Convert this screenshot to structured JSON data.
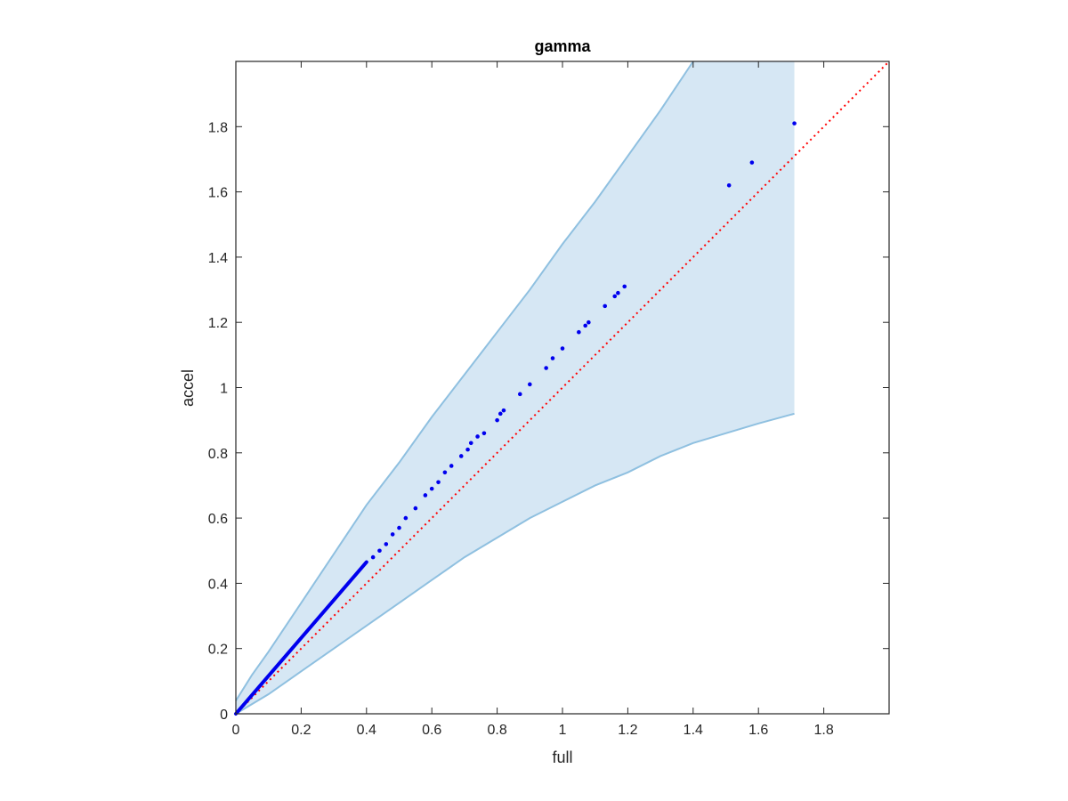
{
  "chart_data": {
    "type": "scatter",
    "title": "gamma",
    "xlabel": "full",
    "ylabel": "accel",
    "xlim": [
      0,
      2
    ],
    "ylim": [
      0,
      2
    ],
    "xticks": [
      "0",
      "0.2",
      "0.4",
      "0.6",
      "0.8",
      "1",
      "1.2",
      "1.4",
      "1.6",
      "1.8"
    ],
    "yticks": [
      "0",
      "0.2",
      "0.4",
      "0.6",
      "0.8",
      "1",
      "1.2",
      "1.4",
      "1.6",
      "1.8"
    ],
    "grid": false,
    "colors": {
      "points": "#0000ee",
      "reference_line": "#ff0000",
      "band_fill": "#d6e7f4",
      "band_edge": "#8fc0e0",
      "axes": "#262626"
    },
    "band": {
      "upper": [
        [
          0,
          0.04
        ],
        [
          0.05,
          0.12
        ],
        [
          0.1,
          0.19
        ],
        [
          0.2,
          0.34
        ],
        [
          0.3,
          0.49
        ],
        [
          0.4,
          0.64
        ],
        [
          0.5,
          0.77
        ],
        [
          0.6,
          0.91
        ],
        [
          0.7,
          1.04
        ],
        [
          0.8,
          1.17
        ],
        [
          0.9,
          1.3
        ],
        [
          1.0,
          1.44
        ],
        [
          1.1,
          1.57
        ],
        [
          1.2,
          1.71
        ],
        [
          1.3,
          1.85
        ],
        [
          1.38,
          1.97
        ],
        [
          1.4,
          2.0
        ]
      ],
      "lower": [
        [
          0,
          0
        ],
        [
          0.05,
          0.03
        ],
        [
          0.1,
          0.06
        ],
        [
          0.2,
          0.13
        ],
        [
          0.3,
          0.2
        ],
        [
          0.4,
          0.27
        ],
        [
          0.5,
          0.34
        ],
        [
          0.6,
          0.41
        ],
        [
          0.7,
          0.48
        ],
        [
          0.8,
          0.54
        ],
        [
          0.9,
          0.6
        ],
        [
          1.0,
          0.65
        ],
        [
          1.1,
          0.7
        ],
        [
          1.2,
          0.74
        ],
        [
          1.3,
          0.79
        ],
        [
          1.4,
          0.83
        ],
        [
          1.5,
          0.86
        ],
        [
          1.6,
          0.89
        ],
        [
          1.71,
          0.92
        ]
      ],
      "x_end": 1.71
    },
    "reference_line": {
      "style": "dotted",
      "from": [
        0,
        0
      ],
      "to": [
        2,
        2
      ]
    },
    "points_dense_segment": {
      "from": [
        0,
        0
      ],
      "to": [
        0.4,
        0.465
      ]
    },
    "points": [
      [
        0.42,
        0.48
      ],
      [
        0.44,
        0.5
      ],
      [
        0.46,
        0.52
      ],
      [
        0.48,
        0.55
      ],
      [
        0.5,
        0.57
      ],
      [
        0.52,
        0.6
      ],
      [
        0.55,
        0.63
      ],
      [
        0.58,
        0.67
      ],
      [
        0.6,
        0.69
      ],
      [
        0.62,
        0.71
      ],
      [
        0.64,
        0.74
      ],
      [
        0.66,
        0.76
      ],
      [
        0.69,
        0.79
      ],
      [
        0.71,
        0.81
      ],
      [
        0.72,
        0.83
      ],
      [
        0.74,
        0.85
      ],
      [
        0.76,
        0.86
      ],
      [
        0.8,
        0.9
      ],
      [
        0.81,
        0.92
      ],
      [
        0.82,
        0.93
      ],
      [
        0.87,
        0.98
      ],
      [
        0.9,
        1.01
      ],
      [
        0.95,
        1.06
      ],
      [
        0.97,
        1.09
      ],
      [
        1.0,
        1.12
      ],
      [
        1.05,
        1.17
      ],
      [
        1.07,
        1.19
      ],
      [
        1.08,
        1.2
      ],
      [
        1.13,
        1.25
      ],
      [
        1.16,
        1.28
      ],
      [
        1.17,
        1.29
      ],
      [
        1.19,
        1.31
      ],
      [
        1.51,
        1.62
      ],
      [
        1.58,
        1.69
      ],
      [
        1.71,
        1.81
      ]
    ]
  }
}
